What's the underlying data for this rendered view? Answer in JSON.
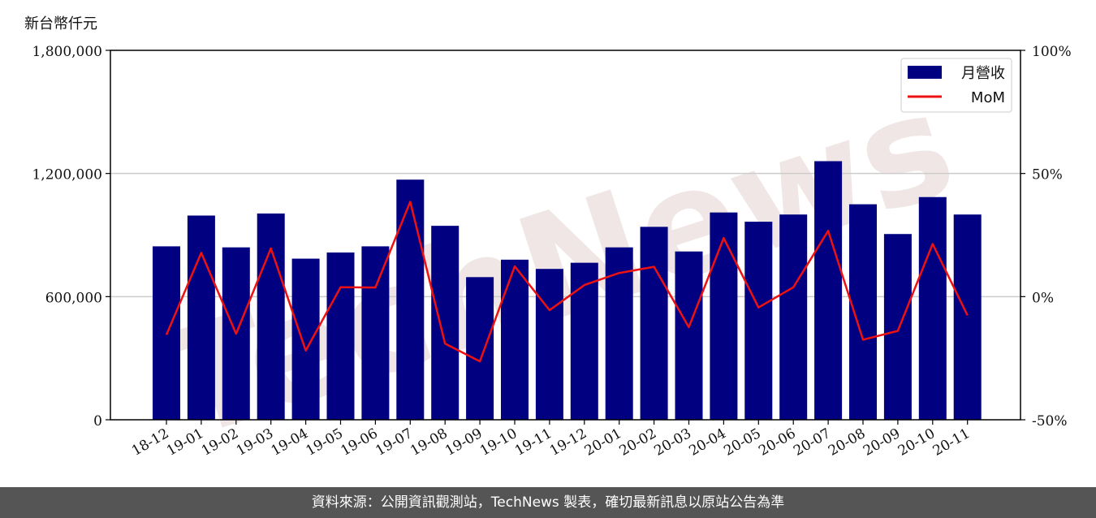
{
  "unit_label": "新台幣仟元",
  "footer": "資料來源：公開資訊觀測站，TechNews 製表，確切最新訊息以原站公告為準",
  "watermark": "TechNews",
  "colors": {
    "bar": "#000080",
    "line": "#ee1111",
    "grid": "#cccccc",
    "footer_bg": "#555555",
    "watermark": "#f0e6e6"
  },
  "chart_data": {
    "type": "bar",
    "categories": [
      "18-12",
      "19-01",
      "19-02",
      "19-03",
      "19-04",
      "19-05",
      "19-06",
      "19-07",
      "19-08",
      "19-09",
      "19-10",
      "19-11",
      "19-12",
      "20-01",
      "20-02",
      "20-03",
      "20-04",
      "20-05",
      "20-06",
      "20-07",
      "20-08",
      "20-09",
      "20-10",
      "20-11"
    ],
    "series": [
      {
        "name": "月營收",
        "type": "bar",
        "axis": "left",
        "values": [
          845000,
          995000,
          840000,
          1005000,
          785000,
          815000,
          845000,
          1170000,
          945000,
          695000,
          780000,
          735000,
          765000,
          840000,
          940000,
          820000,
          1010000,
          965000,
          1000000,
          1260000,
          1050000,
          905000,
          1085000,
          1000000
        ]
      },
      {
        "name": "MoM",
        "type": "line",
        "axis": "right",
        "values": [
          -15.5,
          17.8,
          -15.1,
          19.6,
          -21.9,
          3.8,
          3.7,
          38.5,
          -19.1,
          -26.3,
          12.3,
          -5.5,
          4.7,
          9.6,
          12.1,
          -12.4,
          23.8,
          -4.4,
          3.8,
          26.7,
          -17.5,
          -13.9,
          21.4,
          -7.6
        ]
      }
    ],
    "yaxis_left": {
      "ylim": [
        0,
        1800000
      ],
      "ticks": [
        "0",
        "600,000",
        "1,200,000",
        "1,800,000"
      ],
      "tick_values": [
        0,
        600000,
        1200000,
        1800000
      ]
    },
    "yaxis_right": {
      "ylim": [
        -50,
        100
      ],
      "ticks": [
        "-50%",
        "0%",
        "50%",
        "100%"
      ],
      "tick_values": [
        -50,
        0,
        50,
        100
      ]
    },
    "grid": "horizontal",
    "legend": {
      "position": "top-right",
      "entries": [
        "月營收",
        "MoM"
      ]
    }
  }
}
